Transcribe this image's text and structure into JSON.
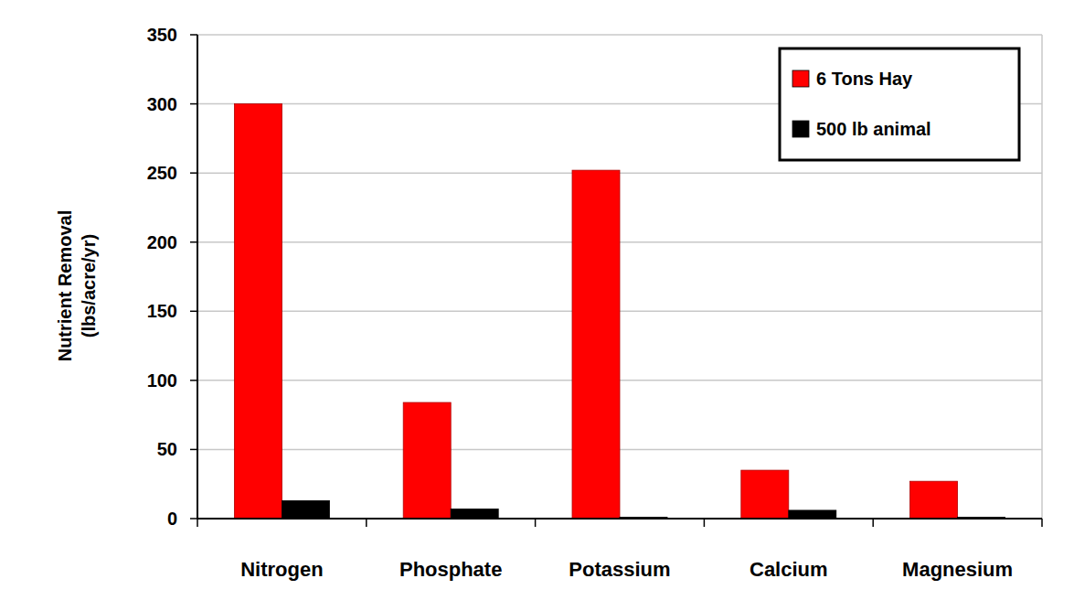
{
  "chart_data": {
    "type": "bar",
    "y_label": [
      "Nutrient Removal",
      "(lbs/acre/yr)"
    ],
    "categories": [
      "Nitrogen",
      "Phosphate",
      "Potassium",
      "Calcium",
      "Magnesium"
    ],
    "series": [
      {
        "name": "6 Tons Hay",
        "color": "#ff0000",
        "values": [
          300,
          84,
          252,
          35,
          27
        ]
      },
      {
        "name": "500 lb animal",
        "color": "#000000",
        "values": [
          13,
          7,
          1,
          6,
          1
        ]
      }
    ],
    "ylim": [
      0,
      350
    ],
    "yticks": [
      0,
      50,
      100,
      150,
      200,
      250,
      300,
      350
    ],
    "grid": true,
    "legend": "upper right"
  }
}
